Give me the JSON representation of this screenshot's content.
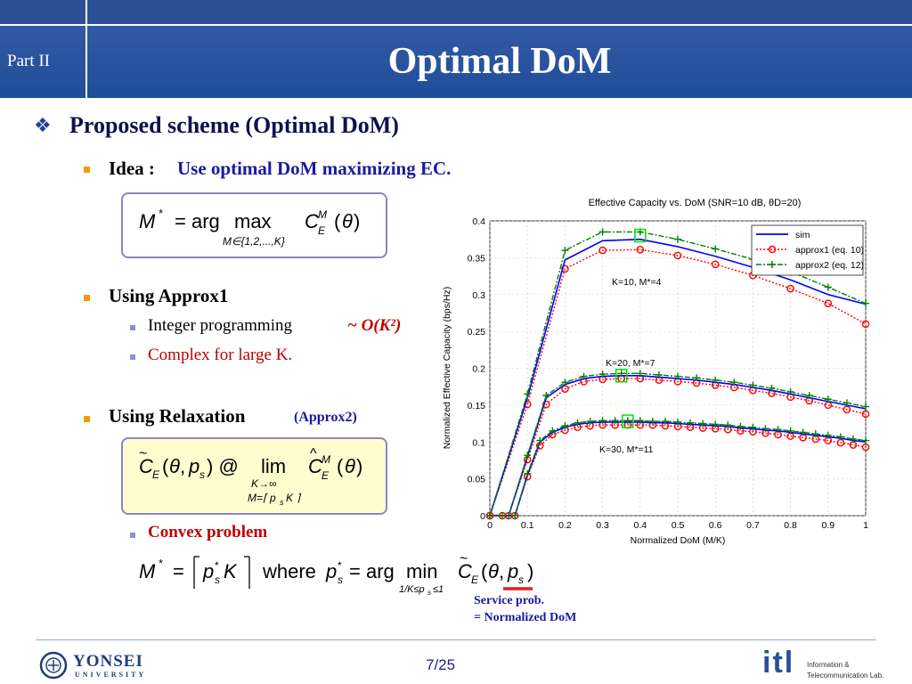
{
  "header": {
    "section": "Part II",
    "title": "Optimal DoM"
  },
  "bullets": {
    "main_heading": "Proposed scheme (Optimal DoM)",
    "idea_label": "Idea :",
    "idea_text": "Use optimal DoM maximizing EC.",
    "approx1_heading": "Using Approx1",
    "integer_programming": "Integer programming",
    "complexity": "~ O(K²)",
    "complex_large": "Complex for large K.",
    "relaxation_heading": "Using Relaxation",
    "relaxation_tag": "(Approx2)",
    "convex": "Convex problem"
  },
  "annotation": {
    "line1": "Service prob.",
    "line2": "= Normalized DoM"
  },
  "footer": {
    "page": "7/25",
    "university": "YONSEI",
    "university_sub": "UNIVERSITY",
    "lab1": "Information &",
    "lab2": "Telecommunication Lab.",
    "lab_logo": "itl"
  },
  "colors": {
    "header": "#1f4d9a",
    "sim": "#0000ff",
    "approx1": "#ff0000",
    "approx2": "#008000",
    "bullet": "#f29b00"
  },
  "chart_data": {
    "type": "line",
    "title": "Effective Capacity vs. DoM (SNR=10 dB, θD=20)",
    "xlabel": "Normalized DoM (M/K)",
    "ylabel": "Normalized Effective Capacity (bps/Hz)",
    "xlim": [
      0,
      1
    ],
    "ylim": [
      0,
      0.4
    ],
    "xticks": [
      "0",
      "0.1",
      "0.2",
      "0.3",
      "0.4",
      "0.5",
      "0.6",
      "0.7",
      "0.8",
      "0.9",
      "1"
    ],
    "yticks": [
      "0",
      "0.05",
      "0.1",
      "0.15",
      "0.2",
      "0.25",
      "0.3",
      "0.35",
      "0.4"
    ],
    "grid": true,
    "legend": "top-right",
    "legend_entries": [
      "sim",
      "approx1 (eq. 10)",
      "approx2 (eq. 12)"
    ],
    "annotations": [
      "K=10, M*=4",
      "K=20, M*=7",
      "K=30, M*=11"
    ],
    "groups": [
      {
        "K": 10,
        "x": [
          0.0,
          0.1,
          0.2,
          0.3,
          0.4,
          0.5,
          0.6,
          0.7,
          0.8,
          0.9,
          1.0
        ],
        "sim": [
          0,
          0.16,
          0.347,
          0.373,
          0.375,
          0.365,
          0.352,
          0.337,
          0.32,
          0.3,
          0.287
        ],
        "approx1": [
          0,
          0.151,
          0.335,
          0.36,
          0.361,
          0.353,
          0.341,
          0.326,
          0.308,
          0.288,
          0.26
        ],
        "approx2": [
          0,
          0.165,
          0.36,
          0.385,
          0.385,
          0.375,
          0.362,
          0.348,
          0.331,
          0.31,
          0.288
        ]
      },
      {
        "K": 20,
        "x": [
          0,
          0.05,
          0.1,
          0.15,
          0.2,
          0.25,
          0.3,
          0.35,
          0.4,
          0.45,
          0.5,
          0.55,
          0.6,
          0.65,
          0.7,
          0.75,
          0.8,
          0.85,
          0.9,
          0.95,
          1.0
        ],
        "sim": [
          0,
          0,
          0.08,
          0.16,
          0.178,
          0.186,
          0.189,
          0.19,
          0.19,
          0.188,
          0.186,
          0.184,
          0.181,
          0.178,
          0.174,
          0.17,
          0.165,
          0.16,
          0.155,
          0.15,
          0.145
        ],
        "approx1": [
          0,
          0,
          0.076,
          0.151,
          0.172,
          0.182,
          0.185,
          0.186,
          0.186,
          0.184,
          0.182,
          0.18,
          0.177,
          0.174,
          0.17,
          0.166,
          0.161,
          0.156,
          0.15,
          0.144,
          0.138
        ],
        "approx2": [
          0,
          0,
          0.082,
          0.163,
          0.181,
          0.189,
          0.192,
          0.193,
          0.193,
          0.191,
          0.189,
          0.187,
          0.184,
          0.181,
          0.177,
          0.173,
          0.168,
          0.163,
          0.158,
          0.153,
          0.148
        ]
      },
      {
        "K": 30,
        "x": [
          0,
          0.0333,
          0.0667,
          0.1,
          0.1333,
          0.1667,
          0.2,
          0.2333,
          0.2667,
          0.3,
          0.3333,
          0.3667,
          0.4,
          0.4333,
          0.4667,
          0.5,
          0.5333,
          0.5667,
          0.6,
          0.6333,
          0.6667,
          0.7,
          0.7333,
          0.7667,
          0.8,
          0.8333,
          0.8667,
          0.9,
          0.9333,
          0.9667,
          1.0
        ],
        "sim": [
          0,
          0,
          0,
          0.055,
          0.1,
          0.113,
          0.12,
          0.124,
          0.126,
          0.127,
          0.127,
          0.127,
          0.127,
          0.126,
          0.126,
          0.125,
          0.124,
          0.123,
          0.122,
          0.121,
          0.119,
          0.118,
          0.116,
          0.115,
          0.113,
          0.111,
          0.109,
          0.107,
          0.105,
          0.102,
          0.1
        ],
        "approx1": [
          0,
          0,
          0,
          0.053,
          0.095,
          0.11,
          0.116,
          0.12,
          0.122,
          0.123,
          0.123,
          0.123,
          0.123,
          0.123,
          0.122,
          0.121,
          0.12,
          0.119,
          0.118,
          0.117,
          0.115,
          0.114,
          0.112,
          0.11,
          0.108,
          0.106,
          0.104,
          0.102,
          0.099,
          0.096,
          0.093
        ],
        "approx2": [
          0,
          0,
          0,
          0.057,
          0.102,
          0.115,
          0.122,
          0.126,
          0.128,
          0.129,
          0.129,
          0.129,
          0.129,
          0.128,
          0.128,
          0.127,
          0.126,
          0.125,
          0.124,
          0.123,
          0.121,
          0.12,
          0.118,
          0.117,
          0.115,
          0.113,
          0.111,
          0.109,
          0.107,
          0.104,
          0.102
        ]
      }
    ],
    "optima": [
      {
        "x": 0.4,
        "y": 0.38
      },
      {
        "x": 0.35,
        "y": 0.19
      },
      {
        "x": 0.3667,
        "y": 0.128
      }
    ]
  }
}
